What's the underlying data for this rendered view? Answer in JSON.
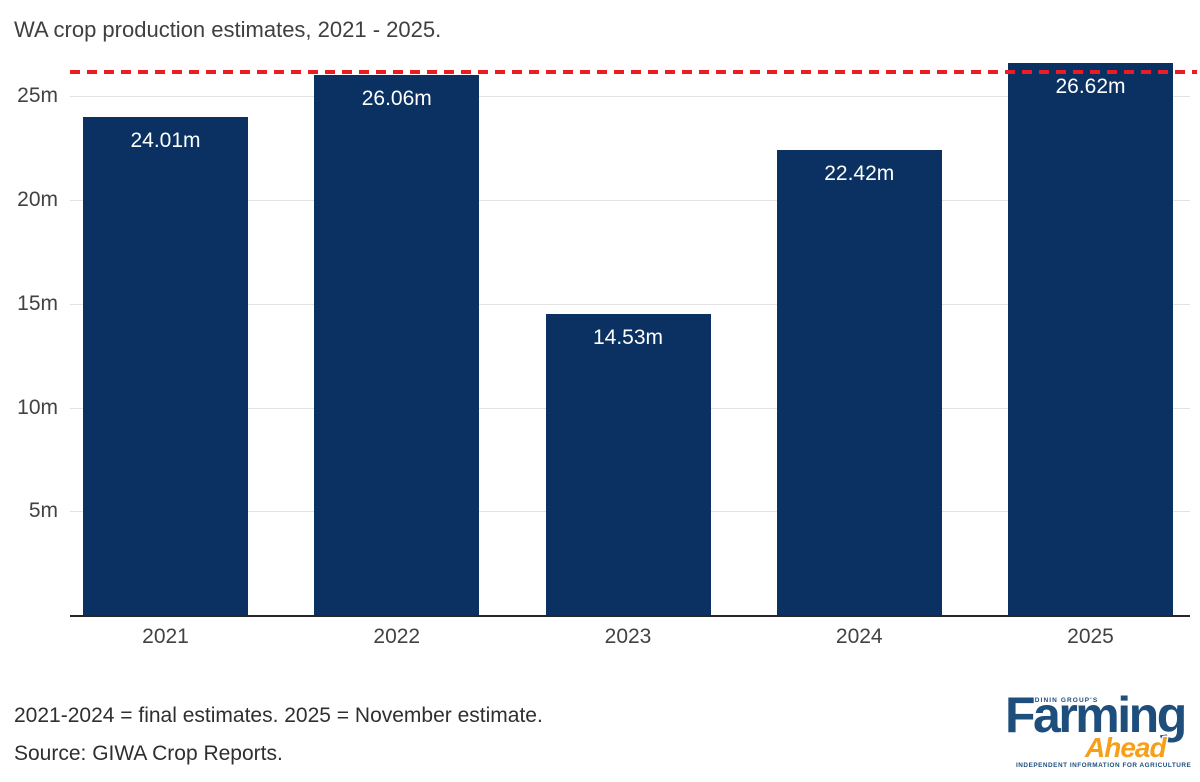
{
  "title": "WA crop production estimates, 2021 - 2025.",
  "chart_data": {
    "type": "bar",
    "title": "WA crop production estimates, 2021 - 2025.",
    "categories": [
      "2021",
      "2022",
      "2023",
      "2024",
      "2025"
    ],
    "values": [
      24.01,
      26.06,
      14.53,
      22.42,
      26.62
    ],
    "bar_labels": [
      "24.01m",
      "26.06m",
      "14.53m",
      "22.42m",
      "26.62m"
    ],
    "xlabel": "",
    "ylabel": "",
    "ylim": [
      0,
      27
    ],
    "yticks": [
      {
        "value": 5,
        "label": "5m"
      },
      {
        "value": 10,
        "label": "10m"
      },
      {
        "value": 15,
        "label": "15m"
      },
      {
        "value": 20,
        "label": "20m"
      },
      {
        "value": 25,
        "label": "25m"
      }
    ],
    "grid": true,
    "legend": false,
    "bar_color": "#0a3161",
    "value_label_color": "#ffffff",
    "reference_line": {
      "value": 26.06,
      "style": "dashed",
      "color": "#ed1c24"
    }
  },
  "footnotes": {
    "line1": "2021-2024 = final estimates. 2025 = November estimate.",
    "line2": "Source: GIWA Crop Reports."
  },
  "logo": {
    "kicker": "KONDININ GROUP'S",
    "main": "Farming",
    "sub": "Ahead",
    "tagline": "INDEPENDENT INFORMATION FOR AGRICULTURE",
    "blue": "#1d4e7c",
    "orange": "#f6a01a"
  }
}
